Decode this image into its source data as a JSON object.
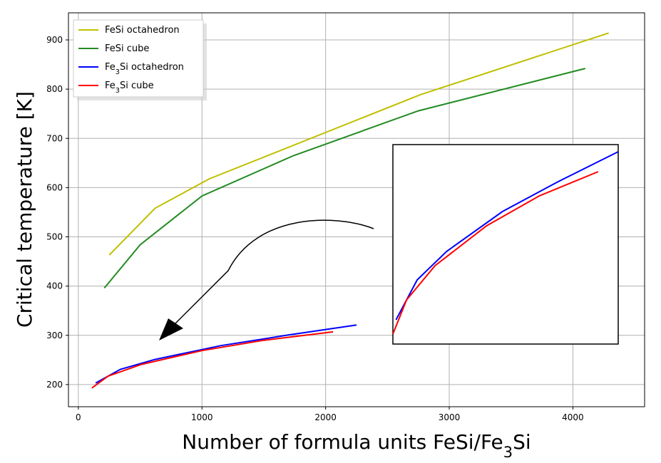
{
  "chart_data": {
    "type": "line",
    "xlabel": "Number of formula units FeSi/Fe₃Si",
    "ylabel": "Critical temperature [K]",
    "xlim": [
      -80,
      4580
    ],
    "ylim": [
      155,
      955
    ],
    "xticks": [
      0,
      1000,
      2000,
      3000,
      4000
    ],
    "yticks": [
      200,
      300,
      400,
      500,
      600,
      700,
      800,
      900
    ],
    "grid": true,
    "legend_position": "top-left",
    "series": [
      {
        "name": "FeSi octahedron",
        "color": "#bfbf00",
        "x": [
          250,
          620,
          1060,
          2770,
          4290
        ],
        "y": [
          463,
          558,
          618,
          789,
          914
        ]
      },
      {
        "name": "FeSi cube",
        "color": "#228b22",
        "x": [
          210,
          500,
          1000,
          1740,
          2750,
          4100
        ],
        "y": [
          396,
          484,
          583,
          665,
          756,
          842
        ]
      },
      {
        "name": "Fe₃Si octahedron",
        "color": "#0000ff",
        "x": [
          140,
          340,
          620,
          1150,
          1680,
          2250
        ],
        "y": [
          203,
          231,
          251,
          279,
          300,
          321
        ]
      },
      {
        "name": "Fe₃Si cube",
        "color": "#ff0000",
        "x": [
          110,
          240,
          510,
          1000,
          1500,
          2060
        ],
        "y": [
          193,
          217,
          241,
          269,
          290,
          307
        ]
      }
    ],
    "inset": {
      "series": [
        {
          "name": "Fe₃Si octahedron",
          "color": "#0000ff",
          "x": [
            140,
            340,
            620,
            1150,
            1680,
            2250
          ],
          "y": [
            203,
            231,
            251,
            279,
            300,
            321
          ]
        },
        {
          "name": "Fe₃Si cube",
          "color": "#ff0000",
          "x": [
            110,
            240,
            510,
            1000,
            1500,
            2060
          ],
          "y": [
            193,
            217,
            241,
            269,
            290,
            307
          ]
        }
      ]
    },
    "annotation": "curved arrow pointing from inset to the Fe₃Si curves"
  }
}
